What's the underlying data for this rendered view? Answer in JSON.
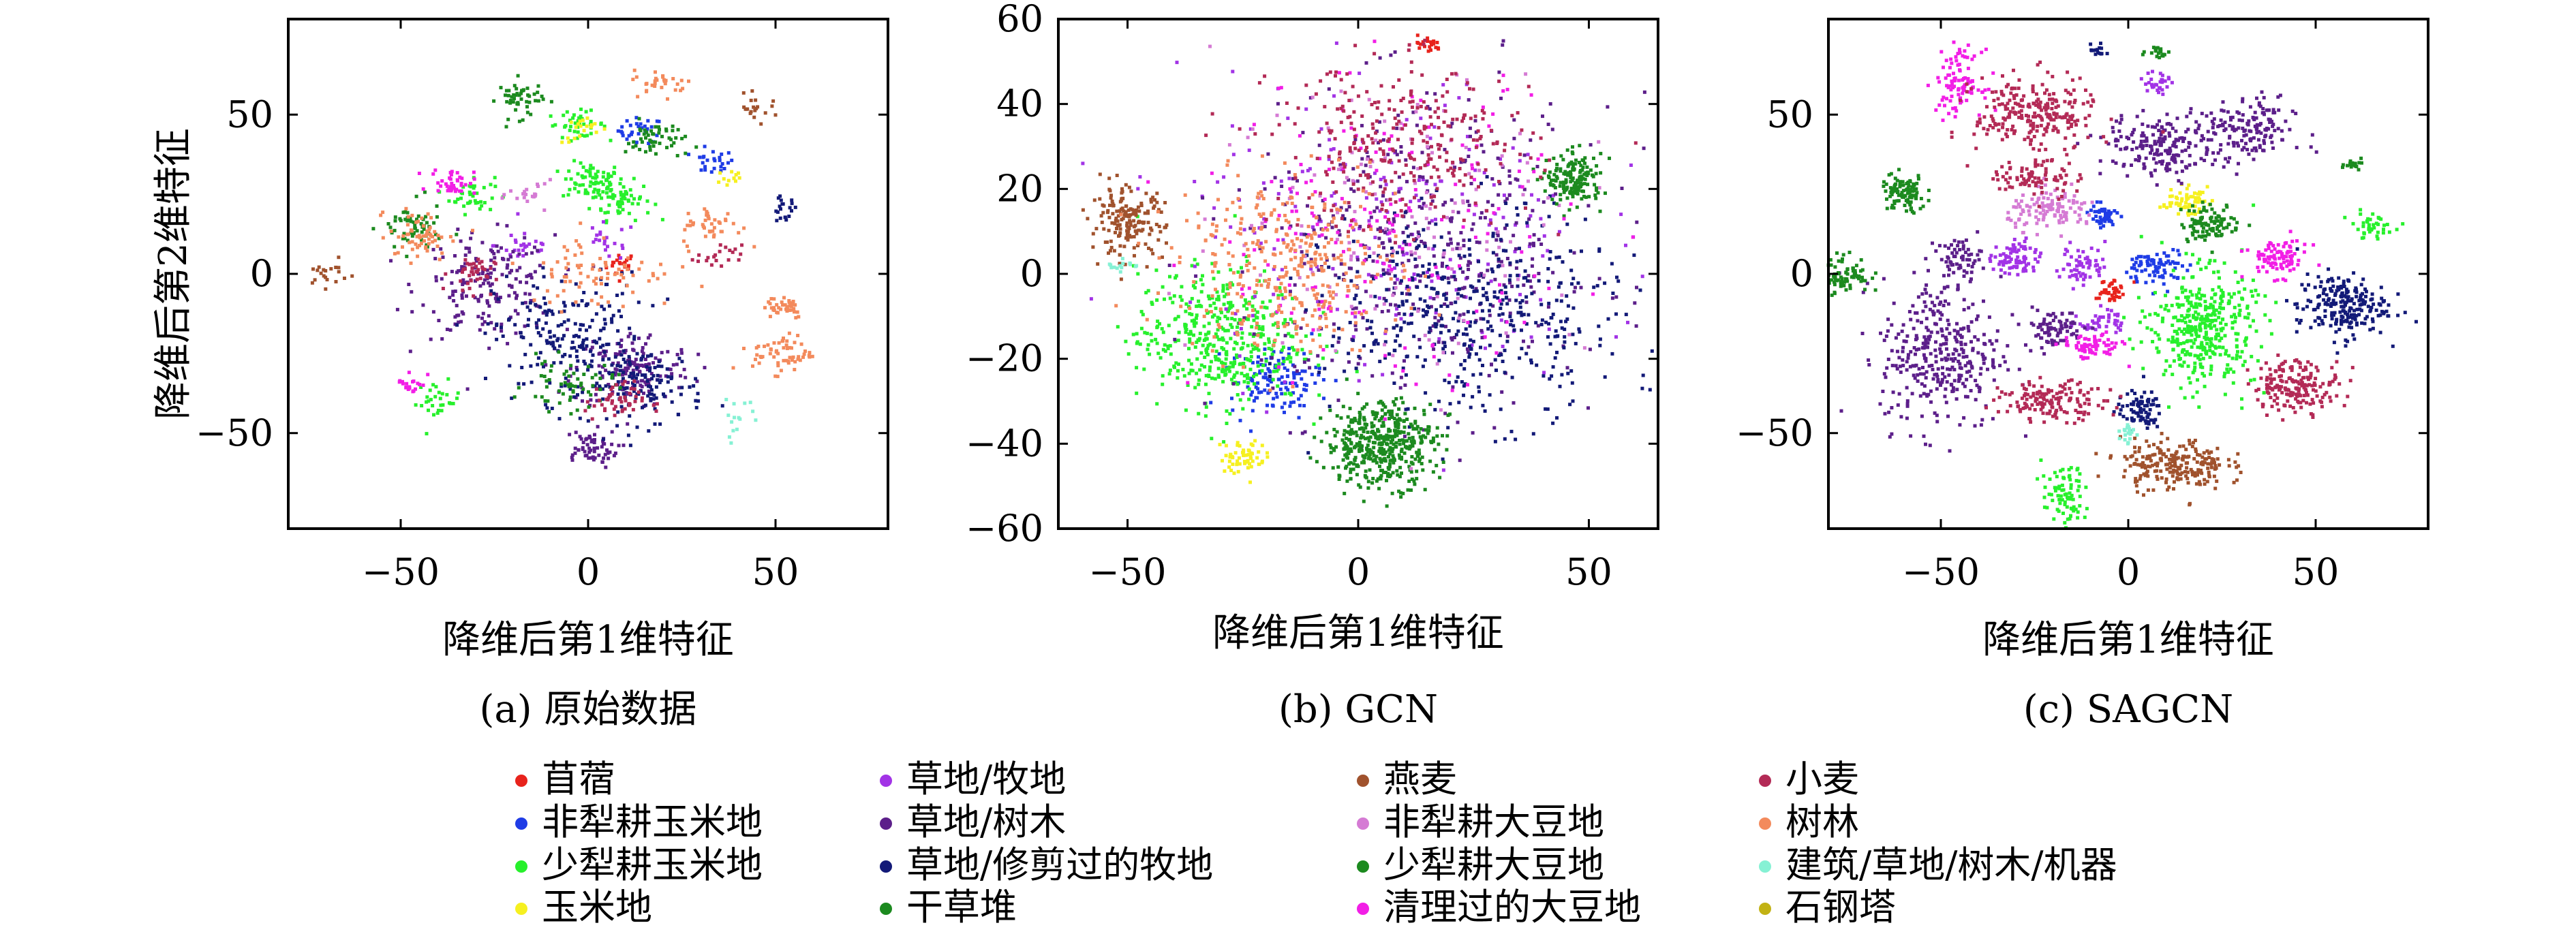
{
  "chart_data": [
    {
      "type": "scatter",
      "caption": "(a) 原始数据",
      "xlabel": "降维后第1维特征",
      "ylabel": "降维后第2维特征",
      "xlim": [
        -80,
        80
      ],
      "ylim": [
        -80,
        80
      ],
      "xticks": [
        -50,
        0,
        50
      ],
      "yticks": [
        -50,
        0,
        50
      ],
      "clusters": [
        {
          "cls": 0,
          "x": 9,
          "y": 3,
          "sx": 2,
          "sy": 2,
          "n": 20
        },
        {
          "cls": 1,
          "x": 14,
          "y": 45,
          "sx": 3,
          "sy": 2,
          "n": 30
        },
        {
          "cls": 1,
          "x": 33,
          "y": 35,
          "sx": 3,
          "sy": 2,
          "n": 25
        },
        {
          "cls": 2,
          "x": 1,
          "y": 29,
          "sx": 4,
          "sy": 3,
          "n": 70
        },
        {
          "cls": 2,
          "x": 9,
          "y": 23,
          "sx": 4,
          "sy": 3,
          "n": 60
        },
        {
          "cls": 2,
          "x": -31,
          "y": 25,
          "sx": 3,
          "sy": 3,
          "n": 40
        },
        {
          "cls": 2,
          "x": -40,
          "y": -40,
          "sx": 3,
          "sy": 3,
          "n": 30
        },
        {
          "cls": 2,
          "x": -3,
          "y": 47,
          "sx": 4,
          "sy": 2,
          "n": 40
        },
        {
          "cls": 3,
          "x": -1,
          "y": 45,
          "sx": 3,
          "sy": 2,
          "n": 20
        },
        {
          "cls": 3,
          "x": 38,
          "y": 30,
          "sx": 2,
          "sy": 2,
          "n": 12
        },
        {
          "cls": 4,
          "x": -17,
          "y": 9,
          "sx": 4,
          "sy": 3,
          "n": 25
        },
        {
          "cls": 4,
          "x": 5,
          "y": 10,
          "sx": 4,
          "sy": 3,
          "n": 20
        },
        {
          "cls": 5,
          "x": -27,
          "y": -4,
          "sx": 9,
          "sy": 8,
          "n": 180
        },
        {
          "cls": 5,
          "x": 12,
          "y": -30,
          "sx": 8,
          "sy": 6,
          "n": 150
        },
        {
          "cls": 5,
          "x": 0,
          "y": -55,
          "sx": 4,
          "sy": 3,
          "n": 60
        },
        {
          "cls": 6,
          "x": -5,
          "y": -20,
          "sx": 10,
          "sy": 10,
          "n": 200
        },
        {
          "cls": 6,
          "x": 15,
          "y": -35,
          "sx": 8,
          "sy": 6,
          "n": 120
        },
        {
          "cls": 6,
          "x": 52,
          "y": 20,
          "sx": 2,
          "sy": 2,
          "n": 20
        },
        {
          "cls": 7,
          "x": -18,
          "y": 55,
          "sx": 3,
          "sy": 3,
          "n": 50
        },
        {
          "cls": 7,
          "x": 18,
          "y": 42,
          "sx": 4,
          "sy": 3,
          "n": 50
        },
        {
          "cls": 8,
          "x": -70,
          "y": 0,
          "sx": 3,
          "sy": 2,
          "n": 20
        },
        {
          "cls": 8,
          "x": 45,
          "y": 52,
          "sx": 3,
          "sy": 2,
          "n": 20
        },
        {
          "cls": 9,
          "x": -15,
          "y": 25,
          "sx": 3,
          "sy": 2,
          "n": 20
        },
        {
          "cls": 10,
          "x": -47,
          "y": 14,
          "sx": 4,
          "sy": 4,
          "n": 60
        },
        {
          "cls": 10,
          "x": -5,
          "y": -35,
          "sx": 6,
          "sy": 4,
          "n": 60
        },
        {
          "cls": 11,
          "x": -36,
          "y": 29,
          "sx": 3,
          "sy": 2,
          "n": 40
        },
        {
          "cls": 11,
          "x": -47,
          "y": -34,
          "sx": 2,
          "sy": 2,
          "n": 20
        },
        {
          "cls": 12,
          "x": -31,
          "y": 0,
          "sx": 3,
          "sy": 3,
          "n": 40
        },
        {
          "cls": 12,
          "x": 7,
          "y": -40,
          "sx": 4,
          "sy": 3,
          "n": 50
        },
        {
          "cls": 12,
          "x": 35,
          "y": 5,
          "sx": 3,
          "sy": 2,
          "n": 20
        },
        {
          "cls": 13,
          "x": -45,
          "y": 12,
          "sx": 4,
          "sy": 4,
          "n": 60
        },
        {
          "cls": 13,
          "x": 52,
          "y": -25,
          "sx": 4,
          "sy": 3,
          "n": 60
        },
        {
          "cls": 13,
          "x": 52,
          "y": -10,
          "sx": 3,
          "sy": 2,
          "n": 40
        },
        {
          "cls": 13,
          "x": 20,
          "y": 60,
          "sx": 4,
          "sy": 2,
          "n": 30
        },
        {
          "cls": 13,
          "x": 33,
          "y": 15,
          "sx": 4,
          "sy": 3,
          "n": 40
        },
        {
          "cls": 13,
          "x": 3,
          "y": 1,
          "sx": 10,
          "sy": 6,
          "n": 80
        },
        {
          "cls": 14,
          "x": 40,
          "y": -45,
          "sx": 3,
          "sy": 3,
          "n": 15
        }
      ]
    },
    {
      "type": "scatter",
      "caption": "(b) GCN",
      "xlabel": "降维后第1维特征",
      "ylabel": "",
      "xlim": [
        -65,
        65
      ],
      "ylim": [
        -60,
        60
      ],
      "xticks": [
        -50,
        0,
        50
      ],
      "yticks": [
        -60,
        -40,
        -20,
        0,
        20,
        40,
        60
      ],
      "clusters": [
        {
          "cls": 0,
          "x": 15,
          "y": 54,
          "sx": 1.5,
          "sy": 1,
          "n": 20
        },
        {
          "cls": 1,
          "x": -18,
          "y": -25,
          "sx": 5,
          "sy": 4,
          "n": 120
        },
        {
          "cls": 2,
          "x": -30,
          "y": -15,
          "sx": 9,
          "sy": 8,
          "n": 450
        },
        {
          "cls": 3,
          "x": -25,
          "y": -43,
          "sx": 2.5,
          "sy": 2,
          "n": 60
        },
        {
          "cls": 4,
          "x": 5,
          "y": 10,
          "sx": 22,
          "sy": 18,
          "n": 220
        },
        {
          "cls": 5,
          "x": 15,
          "y": 5,
          "sx": 20,
          "sy": 18,
          "n": 450
        },
        {
          "cls": 6,
          "x": 25,
          "y": -10,
          "sx": 16,
          "sy": 12,
          "n": 450
        },
        {
          "cls": 7,
          "x": 5,
          "y": -40,
          "sx": 6,
          "sy": 5,
          "n": 450
        },
        {
          "cls": 8,
          "x": -50,
          "y": 12,
          "sx": 4,
          "sy": 4,
          "n": 170
        },
        {
          "cls": 9,
          "x": 10,
          "y": 15,
          "sx": 20,
          "sy": 18,
          "n": 160
        },
        {
          "cls": 10,
          "x": 47,
          "y": 22,
          "sx": 3,
          "sy": 3,
          "n": 160
        },
        {
          "cls": 11,
          "x": 5,
          "y": 10,
          "sx": 20,
          "sy": 18,
          "n": 180
        },
        {
          "cls": 12,
          "x": 10,
          "y": 30,
          "sx": 14,
          "sy": 10,
          "n": 300
        },
        {
          "cls": 13,
          "x": -15,
          "y": 2,
          "sx": 12,
          "sy": 10,
          "n": 350
        },
        {
          "cls": 14,
          "x": -52,
          "y": 2,
          "sx": 1.5,
          "sy": 1,
          "n": 15
        }
      ]
    },
    {
      "type": "scatter",
      "caption": "(c) SAGCN",
      "xlabel": "降维后第1维特征",
      "ylabel": "",
      "xlim": [
        -80,
        80
      ],
      "ylim": [
        -80,
        80
      ],
      "xticks": [
        -50,
        0,
        50
      ],
      "yticks": [
        -50,
        0,
        50
      ],
      "clusters": [
        {
          "cls": 0,
          "x": -5,
          "y": -5,
          "sx": 2,
          "sy": 2,
          "n": 40
        },
        {
          "cls": 1,
          "x": -7,
          "y": 18,
          "sx": 2,
          "sy": 2,
          "n": 50
        },
        {
          "cls": 1,
          "x": 8,
          "y": 2,
          "sx": 4,
          "sy": 3,
          "n": 80
        },
        {
          "cls": 2,
          "x": 20,
          "y": -17,
          "sx": 7,
          "sy": 9,
          "n": 400
        },
        {
          "cls": 2,
          "x": 65,
          "y": 15,
          "sx": 3,
          "sy": 2,
          "n": 40
        },
        {
          "cls": 2,
          "x": -17,
          "y": -70,
          "sx": 3,
          "sy": 5,
          "n": 80
        },
        {
          "cls": 3,
          "x": 15,
          "y": 23,
          "sx": 3,
          "sy": 2,
          "n": 60
        },
        {
          "cls": 4,
          "x": -30,
          "y": 5,
          "sx": 3,
          "sy": 3,
          "n": 80
        },
        {
          "cls": 4,
          "x": -12,
          "y": 3,
          "sx": 3,
          "sy": 3,
          "n": 60
        },
        {
          "cls": 4,
          "x": 8,
          "y": 60,
          "sx": 2,
          "sy": 2,
          "n": 30
        },
        {
          "cls": 4,
          "x": -7,
          "y": -15,
          "sx": 3,
          "sy": 2,
          "n": 40
        },
        {
          "cls": 5,
          "x": 10,
          "y": 40,
          "sx": 8,
          "sy": 5,
          "n": 200
        },
        {
          "cls": 5,
          "x": 32,
          "y": 45,
          "sx": 6,
          "sy": 5,
          "n": 150
        },
        {
          "cls": 5,
          "x": -50,
          "y": -25,
          "sx": 8,
          "sy": 12,
          "n": 350
        },
        {
          "cls": 5,
          "x": -20,
          "y": -17,
          "sx": 4,
          "sy": 3,
          "n": 80
        },
        {
          "cls": 5,
          "x": -45,
          "y": 5,
          "sx": 3,
          "sy": 3,
          "n": 60
        },
        {
          "cls": 6,
          "x": 57,
          "y": -10,
          "sx": 6,
          "sy": 5,
          "n": 220
        },
        {
          "cls": 6,
          "x": 3,
          "y": -43,
          "sx": 3,
          "sy": 3,
          "n": 80
        },
        {
          "cls": 6,
          "x": -8,
          "y": 70,
          "sx": 1,
          "sy": 1,
          "n": 15
        },
        {
          "cls": 7,
          "x": -77,
          "y": 0,
          "sx": 4,
          "sy": 3,
          "n": 100
        },
        {
          "cls": 7,
          "x": 22,
          "y": 16,
          "sx": 4,
          "sy": 3,
          "n": 100
        },
        {
          "cls": 8,
          "x": 12,
          "y": -60,
          "sx": 7,
          "sy": 4,
          "n": 220
        },
        {
          "cls": 9,
          "x": -20,
          "y": 20,
          "sx": 6,
          "sy": 3,
          "n": 120
        },
        {
          "cls": 10,
          "x": -60,
          "y": 25,
          "sx": 3,
          "sy": 3,
          "n": 100
        },
        {
          "cls": 10,
          "x": 8,
          "y": 70,
          "sx": 1.5,
          "sy": 1,
          "n": 20
        },
        {
          "cls": 10,
          "x": 60,
          "y": 35,
          "sx": 2,
          "sy": 1,
          "n": 20
        },
        {
          "cls": 11,
          "x": -45,
          "y": 60,
          "sx": 3,
          "sy": 5,
          "n": 100
        },
        {
          "cls": 11,
          "x": 40,
          "y": 5,
          "sx": 4,
          "sy": 3,
          "n": 90
        },
        {
          "cls": 11,
          "x": -10,
          "y": -23,
          "sx": 4,
          "sy": 2,
          "n": 70
        },
        {
          "cls": 12,
          "x": -25,
          "y": 50,
          "sx": 8,
          "sy": 6,
          "n": 250
        },
        {
          "cls": 12,
          "x": -20,
          "y": -40,
          "sx": 7,
          "sy": 3,
          "n": 150
        },
        {
          "cls": 12,
          "x": 45,
          "y": -35,
          "sx": 6,
          "sy": 4,
          "n": 180
        },
        {
          "cls": 12,
          "x": -25,
          "y": 30,
          "sx": 6,
          "sy": 3,
          "n": 80
        },
        {
          "cls": 14,
          "x": 0,
          "y": -50,
          "sx": 1,
          "sy": 2,
          "n": 20
        }
      ]
    }
  ],
  "legend": [
    {
      "label": "苜蓿",
      "color": "#e8231c"
    },
    {
      "label": "非犁耕玉米地",
      "color": "#1f3ce6"
    },
    {
      "label": "少犁耕玉米地",
      "color": "#27f02c"
    },
    {
      "label": "玉米地",
      "color": "#f6f020"
    },
    {
      "label": "草地/牧地",
      "color": "#a233e6"
    },
    {
      "label": "草地/树木",
      "color": "#5c1f8a"
    },
    {
      "label": "草地/修剪过的牧地",
      "color": "#131a78"
    },
    {
      "label": "干草堆",
      "color": "#1c8a1f"
    },
    {
      "label": "燕麦",
      "color": "#a0522d"
    },
    {
      "label": "非犁耕大豆地",
      "color": "#d57bd4"
    },
    {
      "label": "少犁耕大豆地",
      "color": "#1c8a1f"
    },
    {
      "label": "清理过的大豆地",
      "color": "#f21ee6"
    },
    {
      "label": "小麦",
      "color": "#b32a56"
    },
    {
      "label": "树林",
      "color": "#f38a5c"
    },
    {
      "label": "建筑/草地/树木/机器",
      "color": "#86f1d4"
    },
    {
      "label": "石钢塔",
      "color": "#c2b214"
    }
  ]
}
